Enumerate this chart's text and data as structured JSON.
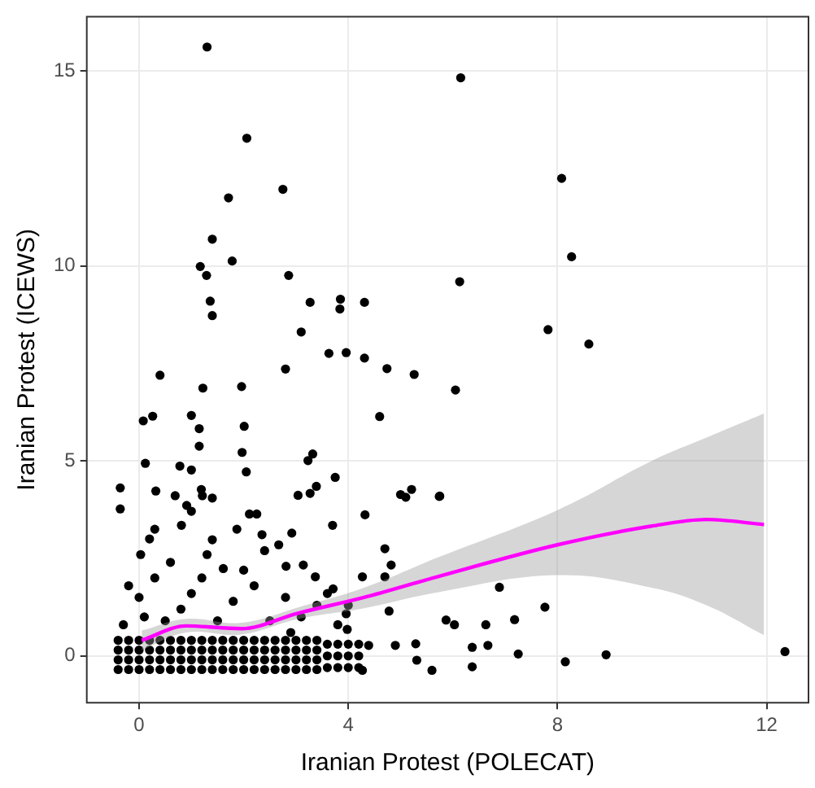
{
  "chart_data": {
    "type": "scatter",
    "xlabel": "Iranian Protest (POLECAT)",
    "ylabel": "Iranian Protest (ICEWS)",
    "xlim": [
      -1,
      12.8
    ],
    "ylim": [
      -1.2,
      16.4
    ],
    "xticks": [
      0,
      4,
      8,
      12
    ],
    "yticks": [
      0,
      5,
      10,
      15
    ],
    "grid": true,
    "series": [
      {
        "marker": "circle",
        "color": "#000000",
        "x": [
          1.3,
          2.06,
          2.75,
          1.71,
          1.4,
          1.17,
          1.78,
          1.29,
          2.86,
          1.36,
          3.27,
          3.85,
          3.84,
          4.31,
          1.4,
          3.1,
          3.63,
          3.96,
          4.31,
          4.74,
          5.26,
          2.8,
          0.4,
          6.15,
          8.08,
          8.27,
          6.13,
          7.82,
          8.6,
          6.05,
          5.75,
          6.89,
          7.76,
          5.87,
          6.03,
          6.63,
          7.18,
          6.37,
          6.67,
          7.25,
          6.37,
          8.15,
          8.93,
          12.35,
          1.22,
          1.96,
          0.08,
          0.26,
          1.0,
          1.15,
          2.01,
          1.15,
          1.97,
          3.23,
          3.32,
          4.6,
          0.12,
          0.78,
          1.0,
          2.05,
          -0.36,
          -0.36,
          0.32,
          0.69,
          1.19,
          1.21,
          1.4,
          3.04,
          3.27,
          3.39,
          3.75,
          5.0,
          5.21,
          5.74,
          5.1,
          4.32,
          3.7,
          2.11,
          2.25,
          0.91,
          1.0,
          0.81,
          1.87,
          1.4,
          2.35,
          2.92,
          2.67,
          0.3,
          0.2,
          0.03,
          4.7,
          4.82,
          2.81,
          3.14,
          1.61,
          3.37,
          3.71,
          4.27,
          4.7,
          4.78,
          4.39,
          4.9,
          5.29,
          5.31,
          5.6,
          4.27,
          3.98,
          3.96,
          0,
          0.3,
          -0.2,
          0.8,
          1.2,
          1.0,
          1.8,
          2.2,
          2.0,
          2.8,
          3.1,
          3.4,
          0.1,
          -0.3,
          0.5,
          1.5,
          2.5,
          2.9,
          3.8,
          4.0,
          3.6,
          1.3,
          2.4,
          0.6,
          -0.4,
          -0.2,
          0,
          0.2,
          0.4,
          -0.4,
          -0.2,
          0,
          0.2,
          0.4,
          -0.4,
          -0.2,
          0,
          0.2,
          0.4,
          -0.4,
          -0.2,
          0,
          0.2,
          0.4,
          0.6,
          0.8,
          1,
          1.2,
          1.4,
          0.6,
          0.8,
          1,
          1.2,
          1.4,
          0.6,
          0.8,
          1,
          1.2,
          1.4,
          0.6,
          0.8,
          1,
          1.2,
          1.4,
          1.6,
          1.8,
          2,
          2.2,
          2.4,
          1.6,
          1.8,
          2,
          2.2,
          2.4,
          1.6,
          1.8,
          2,
          2.2,
          2.4,
          1.6,
          1.8,
          2,
          2.2,
          2.4,
          2.6,
          2.8,
          3,
          3.2,
          3.4,
          2.6,
          2.8,
          3,
          3.2,
          3.4,
          2.6,
          2.8,
          3,
          3.2,
          3.4,
          2.6,
          2.8,
          3,
          3.2,
          3.4,
          3.6,
          3.8,
          4.0,
          4.2,
          3.6,
          3.8,
          4.0,
          4.2,
          3.6,
          3.8,
          4.0,
          4.2
        ],
        "values": [
          15.62,
          13.28,
          11.97,
          11.75,
          10.69,
          9.99,
          10.13,
          9.76,
          9.76,
          9.1,
          9.07,
          9.15,
          8.9,
          9.07,
          8.73,
          8.31,
          7.76,
          7.78,
          7.64,
          7.37,
          7.22,
          7.36,
          7.2,
          14.83,
          12.25,
          10.24,
          9.6,
          8.37,
          8.0,
          6.82,
          4.1,
          1.76,
          1.25,
          0.92,
          0.8,
          0.8,
          0.93,
          0.22,
          0.27,
          0.05,
          -0.28,
          -0.15,
          0.03,
          0.11,
          6.87,
          6.91,
          6.03,
          6.15,
          6.17,
          5.83,
          5.89,
          5.38,
          5.22,
          5.01,
          5.18,
          6.14,
          4.94,
          4.87,
          4.77,
          4.72,
          4.31,
          3.77,
          4.23,
          4.11,
          4.27,
          4.11,
          4.05,
          4.12,
          4.17,
          4.35,
          4.58,
          4.14,
          4.27,
          4.09,
          4.07,
          3.62,
          3.35,
          3.64,
          3.64,
          3.86,
          3.71,
          3.35,
          3.25,
          2.98,
          3.11,
          3.15,
          2.85,
          3.25,
          3.0,
          2.6,
          2.75,
          2.33,
          2.3,
          2.33,
          2.24,
          2.03,
          1.72,
          2.03,
          2.03,
          1.15,
          0.27,
          0.27,
          0.31,
          -0.11,
          -0.37,
          -0.37,
          0.68,
          1.08,
          1.5,
          2.0,
          1.8,
          1.2,
          2.0,
          1.6,
          1.4,
          1.8,
          2.2,
          1.5,
          1.0,
          1.3,
          1.0,
          0.8,
          0.9,
          0.9,
          0.9,
          0.6,
          0.8,
          1.3,
          1.6,
          2.6,
          2.7,
          2.4,
          -0.35,
          -0.35,
          -0.35,
          -0.35,
          -0.35,
          -0.1,
          -0.1,
          -0.1,
          -0.1,
          -0.1,
          0.15,
          0.15,
          0.15,
          0.15,
          0.15,
          0.4,
          0.4,
          0.4,
          0.4,
          0.4,
          -0.35,
          -0.35,
          -0.35,
          -0.35,
          -0.35,
          -0.1,
          -0.1,
          -0.1,
          -0.1,
          -0.1,
          0.15,
          0.15,
          0.15,
          0.15,
          0.15,
          0.4,
          0.4,
          0.4,
          0.4,
          0.4,
          -0.35,
          -0.35,
          -0.35,
          -0.35,
          -0.35,
          -0.1,
          -0.1,
          -0.1,
          -0.1,
          -0.1,
          0.15,
          0.15,
          0.15,
          0.15,
          0.15,
          0.4,
          0.4,
          0.4,
          0.4,
          0.4,
          -0.35,
          -0.35,
          -0.35,
          -0.35,
          -0.35,
          -0.1,
          -0.1,
          -0.1,
          -0.1,
          -0.1,
          0.15,
          0.15,
          0.15,
          0.15,
          0.15,
          0.4,
          0.4,
          0.4,
          0.4,
          0.4,
          -0.3,
          -0.3,
          -0.3,
          -0.3,
          0,
          0,
          0,
          0,
          0.3,
          0.3,
          0.3,
          0.3
        ]
      },
      {
        "type": "line",
        "color": "#ff00ff",
        "x": [
          0.05,
          0.9,
          1.95,
          3.05,
          4.3,
          5.7,
          8.0,
          9.8,
          10.85,
          11.95
        ],
        "values": [
          0.4,
          0.77,
          0.7,
          1.1,
          1.5,
          2.03,
          2.85,
          3.33,
          3.5,
          3.37
        ],
        "lower": [
          0.15,
          0.6,
          0.55,
          0.95,
          1.22,
          1.63,
          2.07,
          1.75,
          1.3,
          0.53
        ],
        "upper": [
          0.65,
          0.95,
          0.85,
          1.25,
          1.75,
          2.52,
          3.74,
          5.0,
          5.6,
          6.22
        ]
      }
    ]
  }
}
